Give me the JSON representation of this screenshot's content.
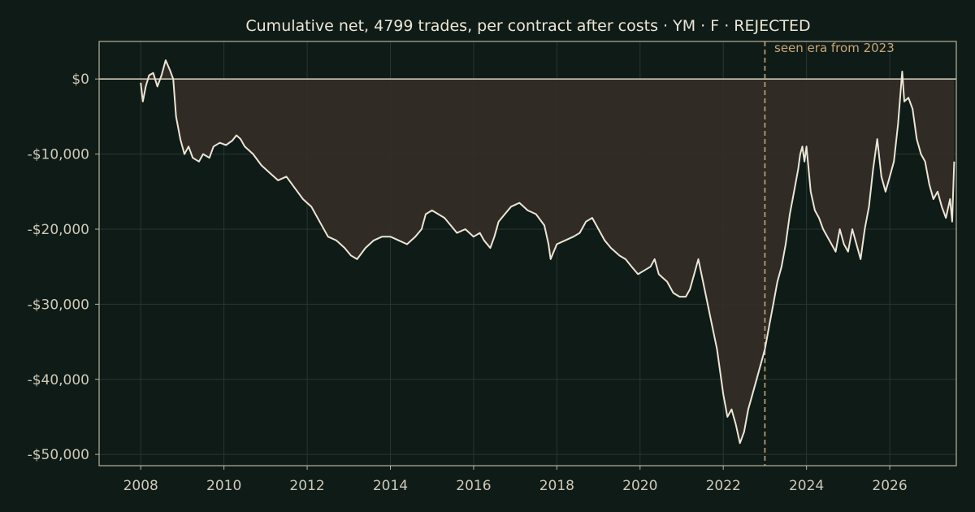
{
  "chart_data": {
    "type": "area",
    "title": "Cumulative net, 4799 trades, per contract after costs  ·  YM · F · REJECTED",
    "xlabel": "",
    "ylabel": "",
    "xlim": [
      2007.0,
      2027.6
    ],
    "ylim": [
      -51500,
      5000
    ],
    "grid": true,
    "xticks": [
      2008,
      2010,
      2012,
      2014,
      2016,
      2018,
      2020,
      2022,
      2024,
      2026
    ],
    "xtick_labels": [
      "2008",
      "2010",
      "2012",
      "2014",
      "2016",
      "2018",
      "2020",
      "2022",
      "2024",
      "2026"
    ],
    "yticks": [
      0,
      -10000,
      -20000,
      -30000,
      -40000,
      -50000
    ],
    "ytick_labels": [
      "$0",
      "-$10,000",
      "-$20,000",
      "-$30,000",
      "-$40,000",
      "-$50,000"
    ],
    "annotation": {
      "text": "seen era from 2023",
      "x": 2023.0
    },
    "colors": {
      "background": "#0f1b17",
      "line": "#ece6d6",
      "fill": "#342d27",
      "axis": "#b8b29f",
      "grid": "#2b3630",
      "zero_line": "#cfc9b6",
      "annotation": "#c9a774"
    },
    "series": [
      {
        "values": [
          [
            2008.0,
            -500
          ],
          [
            2008.05,
            -3000
          ],
          [
            2008.12,
            -1000
          ],
          [
            2008.2,
            500
          ],
          [
            2008.3,
            800
          ],
          [
            2008.4,
            -1000
          ],
          [
            2008.5,
            500
          ],
          [
            2008.6,
            2500
          ],
          [
            2008.7,
            1200
          ],
          [
            2008.78,
            0
          ],
          [
            2008.85,
            -5000
          ],
          [
            2008.95,
            -8000
          ],
          [
            2009.05,
            -10000
          ],
          [
            2009.15,
            -9000
          ],
          [
            2009.25,
            -10500
          ],
          [
            2009.4,
            -11000
          ],
          [
            2009.5,
            -10000
          ],
          [
            2009.65,
            -10500
          ],
          [
            2009.75,
            -9000
          ],
          [
            2009.9,
            -8500
          ],
          [
            2010.05,
            -8800
          ],
          [
            2010.2,
            -8200
          ],
          [
            2010.3,
            -7500
          ],
          [
            2010.4,
            -8000
          ],
          [
            2010.5,
            -9000
          ],
          [
            2010.7,
            -10000
          ],
          [
            2010.9,
            -11500
          ],
          [
            2011.1,
            -12500
          ],
          [
            2011.3,
            -13500
          ],
          [
            2011.5,
            -13000
          ],
          [
            2011.7,
            -14500
          ],
          [
            2011.9,
            -16000
          ],
          [
            2012.1,
            -17000
          ],
          [
            2012.3,
            -19000
          ],
          [
            2012.5,
            -21000
          ],
          [
            2012.7,
            -21500
          ],
          [
            2012.9,
            -22500
          ],
          [
            2013.05,
            -23500
          ],
          [
            2013.2,
            -24000
          ],
          [
            2013.4,
            -22500
          ],
          [
            2013.6,
            -21500
          ],
          [
            2013.8,
            -21000
          ],
          [
            2014.0,
            -21000
          ],
          [
            2014.2,
            -21500
          ],
          [
            2014.4,
            -22000
          ],
          [
            2014.6,
            -21000
          ],
          [
            2014.75,
            -20000
          ],
          [
            2014.85,
            -18000
          ],
          [
            2015.0,
            -17500
          ],
          [
            2015.15,
            -18000
          ],
          [
            2015.3,
            -18500
          ],
          [
            2015.45,
            -19500
          ],
          [
            2015.6,
            -20500
          ],
          [
            2015.8,
            -20000
          ],
          [
            2016.0,
            -21000
          ],
          [
            2016.15,
            -20500
          ],
          [
            2016.25,
            -21500
          ],
          [
            2016.4,
            -22500
          ],
          [
            2016.5,
            -21000
          ],
          [
            2016.6,
            -19000
          ],
          [
            2016.75,
            -18000
          ],
          [
            2016.9,
            -17000
          ],
          [
            2017.1,
            -16500
          ],
          [
            2017.3,
            -17500
          ],
          [
            2017.5,
            -18000
          ],
          [
            2017.7,
            -19500
          ],
          [
            2017.8,
            -22000
          ],
          [
            2017.85,
            -24000
          ],
          [
            2018.0,
            -22000
          ],
          [
            2018.2,
            -21500
          ],
          [
            2018.4,
            -21000
          ],
          [
            2018.55,
            -20500
          ],
          [
            2018.7,
            -19000
          ],
          [
            2018.85,
            -18500
          ],
          [
            2019.0,
            -20000
          ],
          [
            2019.15,
            -21500
          ],
          [
            2019.3,
            -22500
          ],
          [
            2019.5,
            -23500
          ],
          [
            2019.65,
            -24000
          ],
          [
            2019.8,
            -25000
          ],
          [
            2019.95,
            -26000
          ],
          [
            2020.1,
            -25500
          ],
          [
            2020.25,
            -25000
          ],
          [
            2020.35,
            -24000
          ],
          [
            2020.45,
            -26000
          ],
          [
            2020.55,
            -26500
          ],
          [
            2020.65,
            -27000
          ],
          [
            2020.8,
            -28500
          ],
          [
            2020.95,
            -29000
          ],
          [
            2021.1,
            -29000
          ],
          [
            2021.2,
            -28000
          ],
          [
            2021.3,
            -26000
          ],
          [
            2021.4,
            -24000
          ],
          [
            2021.55,
            -28000
          ],
          [
            2021.7,
            -32000
          ],
          [
            2021.85,
            -36000
          ],
          [
            2022.0,
            -42000
          ],
          [
            2022.1,
            -45000
          ],
          [
            2022.2,
            -44000
          ],
          [
            2022.3,
            -46000
          ],
          [
            2022.4,
            -48500
          ],
          [
            2022.5,
            -47000
          ],
          [
            2022.6,
            -44000
          ],
          [
            2022.7,
            -42000
          ],
          [
            2022.8,
            -40000
          ],
          [
            2022.9,
            -38000
          ],
          [
            2023.0,
            -36000
          ],
          [
            2023.1,
            -33000
          ],
          [
            2023.2,
            -30000
          ],
          [
            2023.3,
            -27000
          ],
          [
            2023.4,
            -25000
          ],
          [
            2023.5,
            -22000
          ],
          [
            2023.6,
            -18000
          ],
          [
            2023.7,
            -15000
          ],
          [
            2023.8,
            -12000
          ],
          [
            2023.85,
            -10000
          ],
          [
            2023.9,
            -9000
          ],
          [
            2023.95,
            -11000
          ],
          [
            2024.0,
            -9000
          ],
          [
            2024.05,
            -12000
          ],
          [
            2024.1,
            -15000
          ],
          [
            2024.2,
            -17500
          ],
          [
            2024.3,
            -18500
          ],
          [
            2024.4,
            -20000
          ],
          [
            2024.5,
            -21000
          ],
          [
            2024.6,
            -22000
          ],
          [
            2024.7,
            -23000
          ],
          [
            2024.8,
            -20000
          ],
          [
            2024.9,
            -22000
          ],
          [
            2025.0,
            -23000
          ],
          [
            2025.1,
            -20000
          ],
          [
            2025.2,
            -22000
          ],
          [
            2025.3,
            -24000
          ],
          [
            2025.4,
            -20000
          ],
          [
            2025.5,
            -17000
          ],
          [
            2025.6,
            -12000
          ],
          [
            2025.7,
            -8000
          ],
          [
            2025.8,
            -13000
          ],
          [
            2025.9,
            -15000
          ],
          [
            2026.0,
            -13000
          ],
          [
            2026.1,
            -11000
          ],
          [
            2026.2,
            -6000
          ],
          [
            2026.3,
            1000
          ],
          [
            2026.35,
            -3000
          ],
          [
            2026.45,
            -2500
          ],
          [
            2026.55,
            -4000
          ],
          [
            2026.65,
            -8000
          ],
          [
            2026.75,
            -10000
          ],
          [
            2026.85,
            -11000
          ],
          [
            2026.95,
            -14000
          ],
          [
            2027.05,
            -16000
          ],
          [
            2027.15,
            -15000
          ],
          [
            2027.25,
            -17000
          ],
          [
            2027.35,
            -18500
          ],
          [
            2027.45,
            -16000
          ],
          [
            2027.5,
            -19000
          ],
          [
            2027.55,
            -11000
          ]
        ]
      }
    ]
  }
}
